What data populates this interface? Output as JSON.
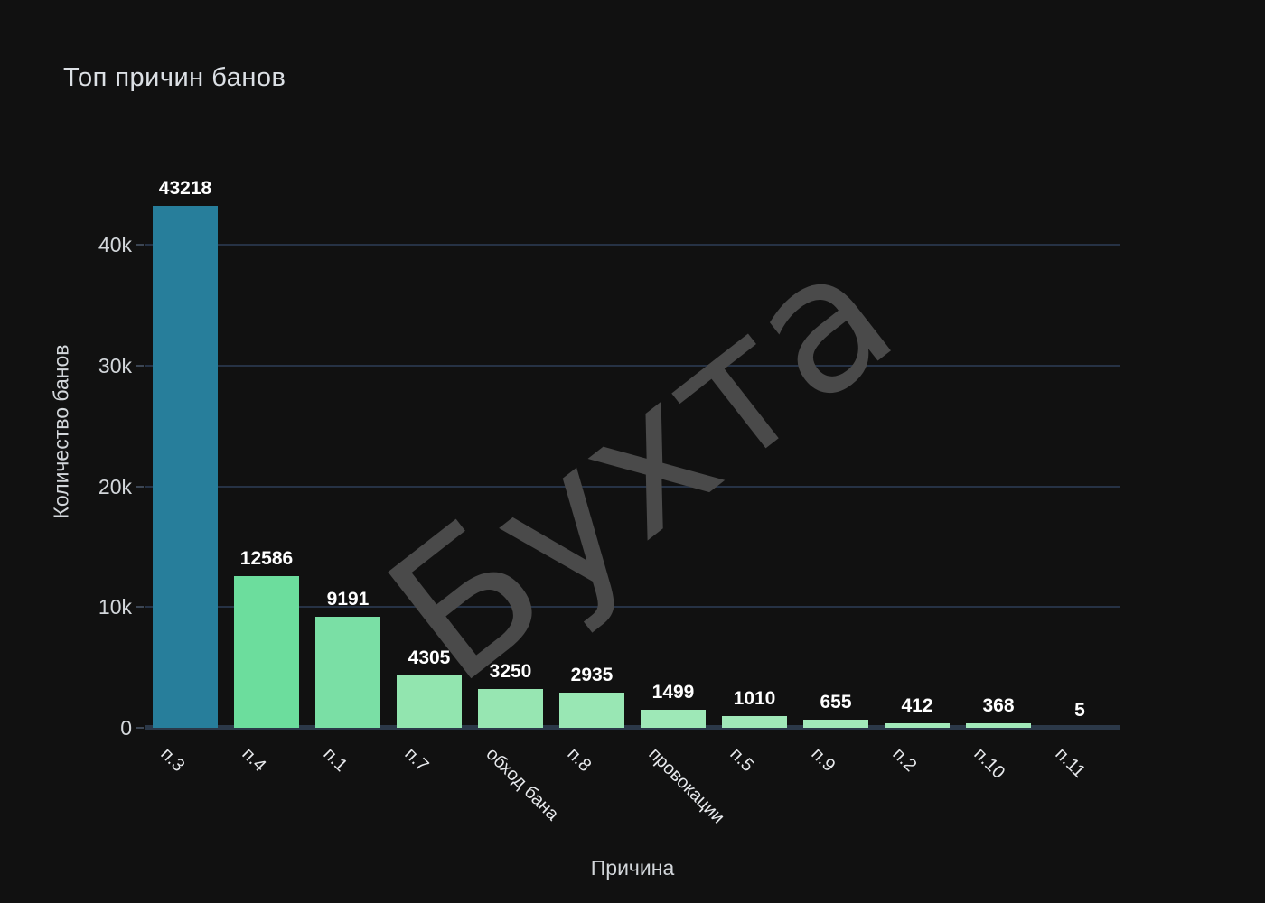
{
  "title": "Топ причин банов",
  "watermark_text": "Бухта",
  "colors": {
    "background": "#111111",
    "gridline": "#263245",
    "axis_line": "#2b3848",
    "tick_text": "#d3d7db",
    "title_text": "#dce0e5",
    "value_label_text": "#ffffff",
    "watermark": "#4a4a4a",
    "highlight_bar": "#277e9b"
  },
  "chart_data": {
    "type": "bar",
    "title": "Топ причин банов",
    "xlabel": "Причина",
    "ylabel": "Количество банов",
    "categories": [
      "п.3",
      "п.4",
      "п.1",
      "п.7",
      "обход бана",
      "п.8",
      "провокации",
      "п.5",
      "п.9",
      "п.2",
      "п.10",
      "п.11"
    ],
    "values": [
      43218,
      12586,
      9191,
      4305,
      3250,
      2935,
      1499,
      1010,
      655,
      412,
      368,
      5
    ],
    "value_labels": [
      "43218",
      "12586",
      "9191",
      "4305",
      "3250",
      "2935",
      "1499",
      "1010",
      "655",
      "412",
      "368",
      "5"
    ],
    "bar_colors": [
      "#277e9b",
      "#6cdd9d",
      "#7adfa5",
      "#92e5af",
      "#97e6b2",
      "#99e7b4",
      "#9ee8b7",
      "#a0e8b8",
      "#a1e9b9",
      "#a2e9ba",
      "#a2e9ba",
      "#a3e9bb"
    ],
    "ylim": [
      0,
      43218
    ],
    "y_ticks": [
      {
        "label": "0",
        "value": 0
      },
      {
        "label": "10k",
        "value": 10000
      },
      {
        "label": "20k",
        "value": 20000
      },
      {
        "label": "30k",
        "value": 30000
      },
      {
        "label": "40k",
        "value": 40000
      }
    ],
    "grid": "horizontal gridlines at 10k/20k/30k/40k, dark theme",
    "legend": "none",
    "x_tick_rotation_deg": 45
  }
}
